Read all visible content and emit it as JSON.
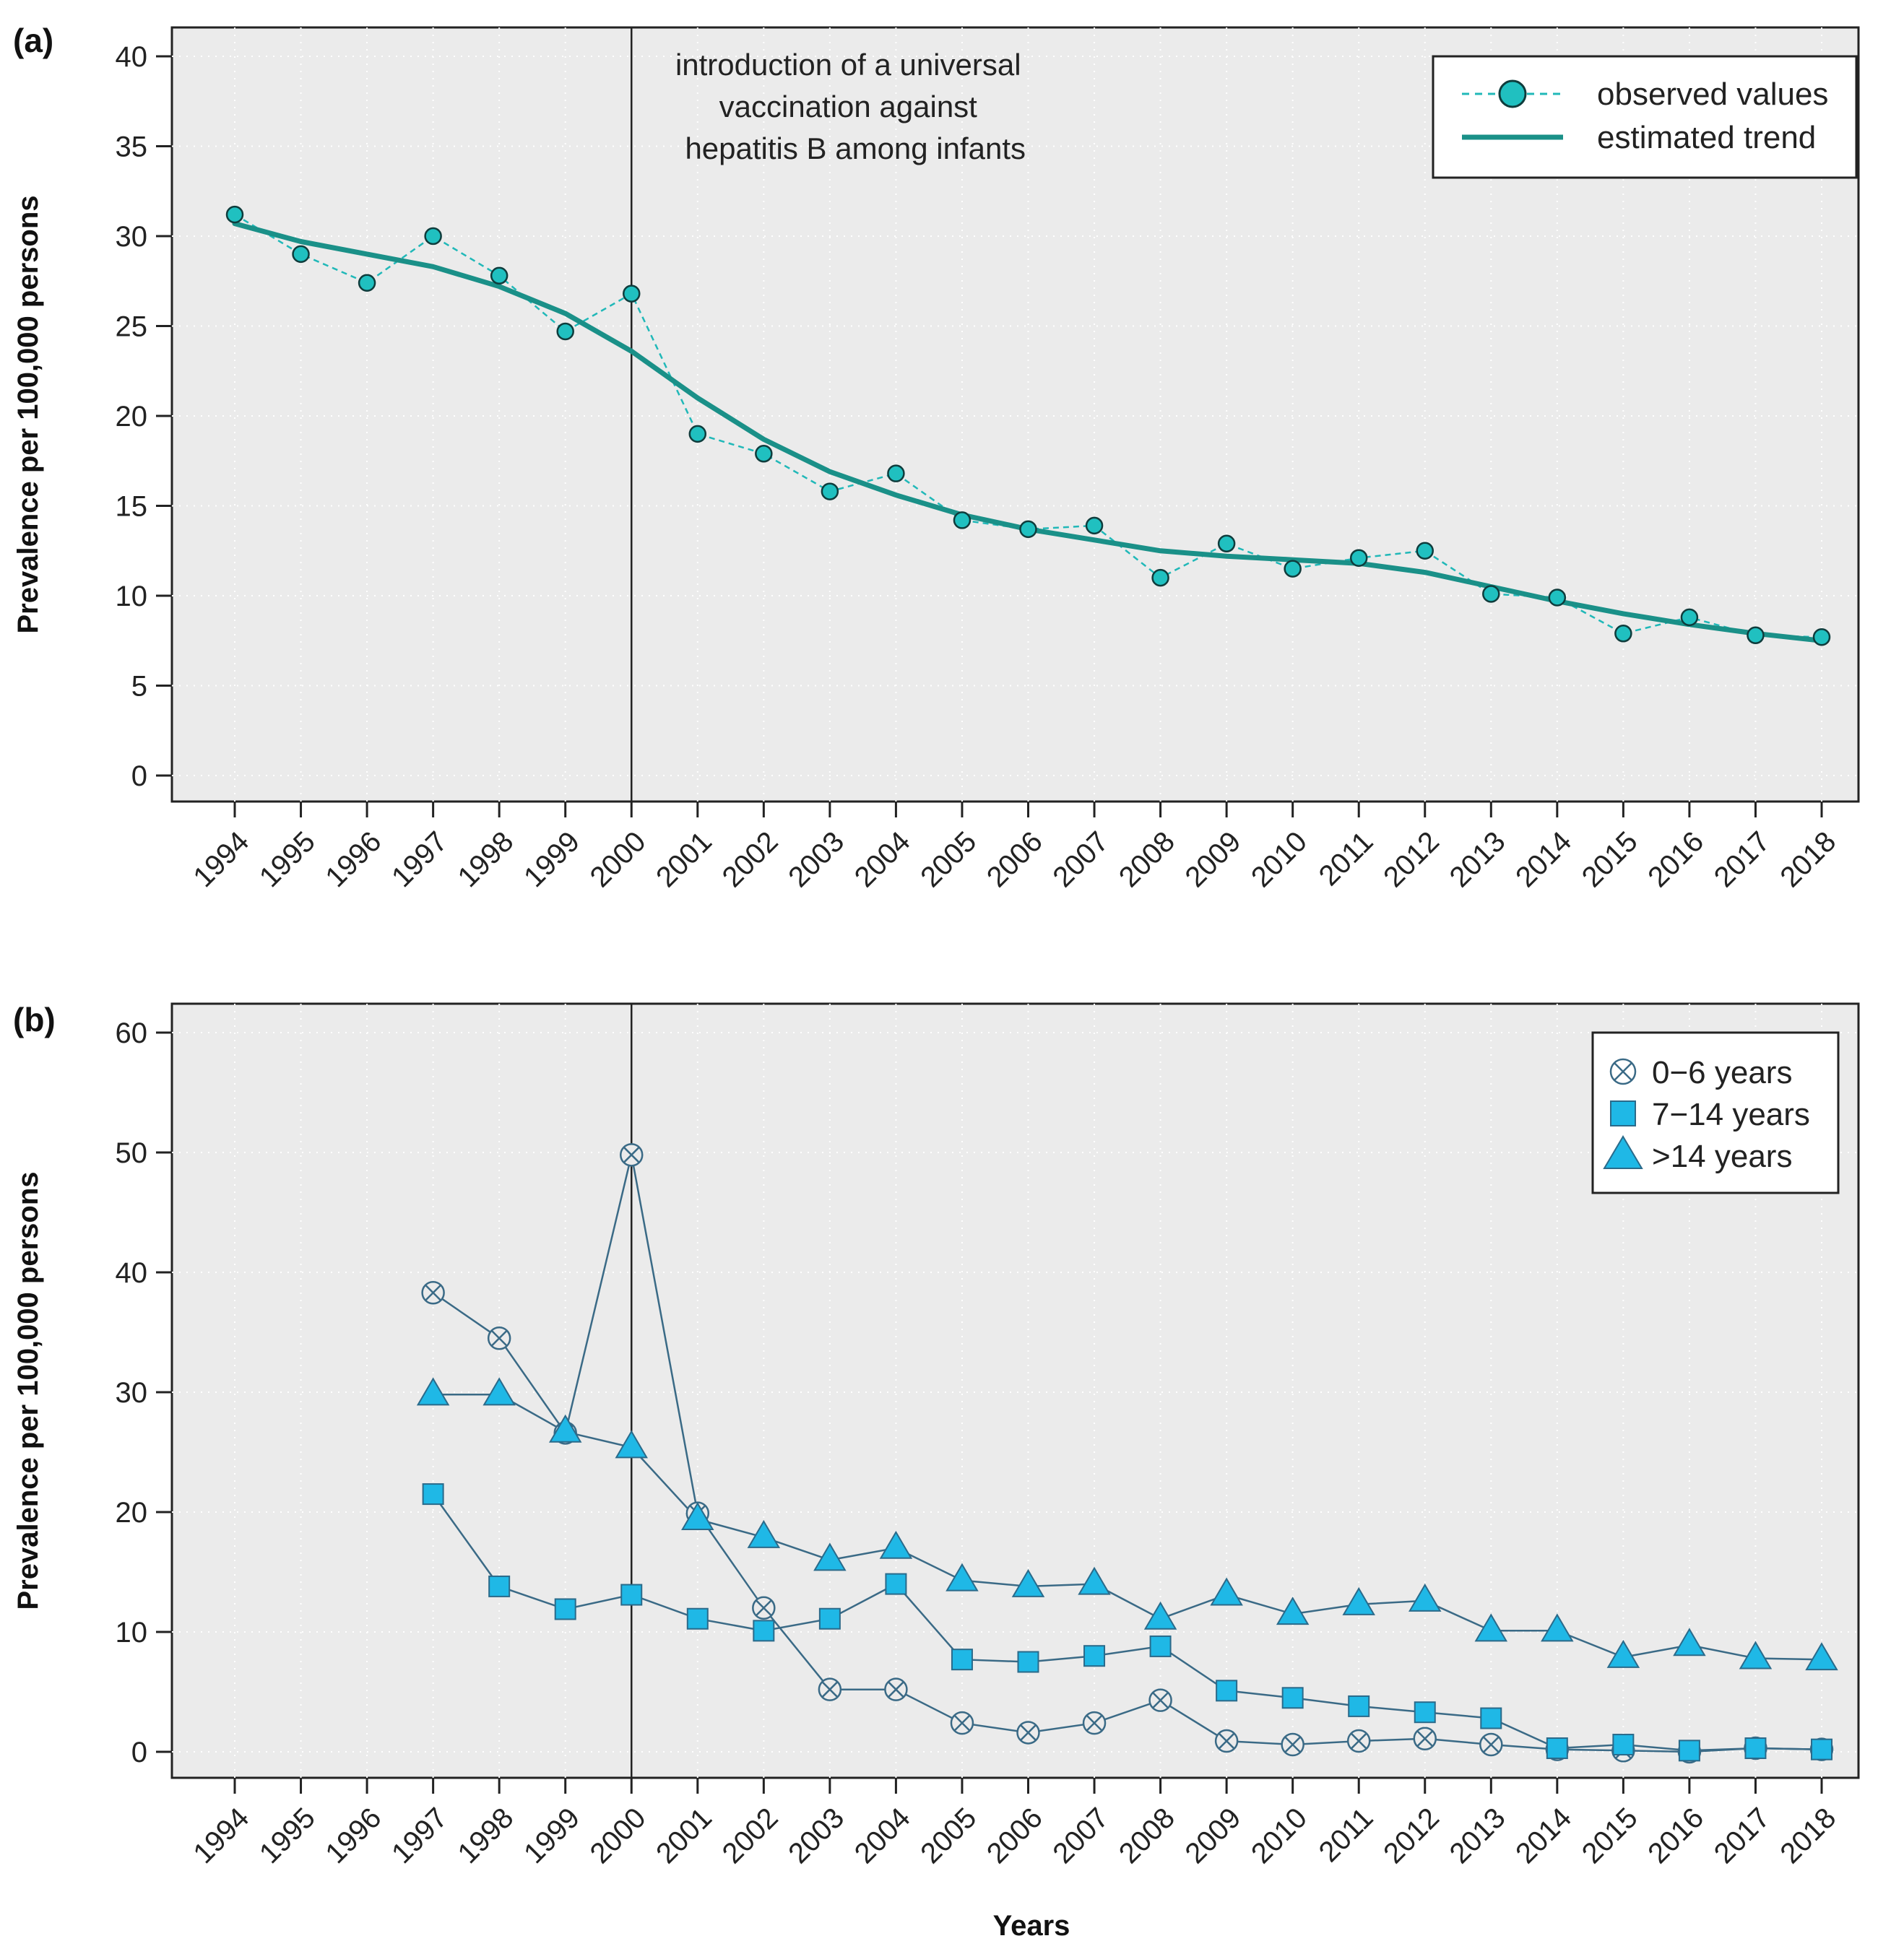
{
  "chart_data": [
    {
      "panel": "(a)",
      "type": "line",
      "ylabel": "Prevalence per 100,000 persons",
      "xlabel": "",
      "ylim": [
        0,
        40
      ],
      "yticks": [
        0,
        5,
        10,
        15,
        20,
        25,
        30,
        35,
        40
      ],
      "x": [
        1994,
        1995,
        1996,
        1997,
        1998,
        1999,
        2000,
        2001,
        2002,
        2003,
        2004,
        2005,
        2006,
        2007,
        2008,
        2009,
        2010,
        2011,
        2012,
        2013,
        2014,
        2015,
        2016,
        2017,
        2018
      ],
      "grid": true,
      "vline": {
        "x": 2000
      },
      "annotation": [
        "introduction of a universal",
        "vaccination against",
        "hepatitis B among infants"
      ],
      "legend": {
        "position": "top-right"
      },
      "series": [
        {
          "name": "observed values",
          "style": "points-dashed",
          "color": "#20b8b8",
          "values": [
            31.2,
            29.0,
            27.4,
            30.0,
            27.8,
            24.7,
            26.8,
            19.0,
            17.9,
            15.8,
            16.8,
            14.2,
            13.7,
            13.9,
            11.0,
            12.9,
            11.5,
            12.1,
            12.5,
            10.1,
            9.9,
            7.9,
            8.8,
            7.8,
            7.7
          ]
        },
        {
          "name": "estimated trend",
          "style": "line",
          "color": "#1a9088",
          "values": [
            30.7,
            29.7,
            29.0,
            28.3,
            27.2,
            25.7,
            23.6,
            21.0,
            18.7,
            16.9,
            15.6,
            14.5,
            13.7,
            13.1,
            12.5,
            12.2,
            12.0,
            11.8,
            11.3,
            10.5,
            9.7,
            9.0,
            8.4,
            7.9,
            7.5
          ]
        }
      ]
    },
    {
      "panel": "(b)",
      "type": "line",
      "ylabel": "Prevalence per 100,000 persons",
      "xlabel": "Years",
      "ylim": [
        0,
        60
      ],
      "yticks": [
        0,
        10,
        20,
        30,
        40,
        50,
        60
      ],
      "x": [
        1994,
        1995,
        1996,
        1997,
        1998,
        1999,
        2000,
        2001,
        2002,
        2003,
        2004,
        2005,
        2006,
        2007,
        2008,
        2009,
        2010,
        2011,
        2012,
        2013,
        2014,
        2015,
        2016,
        2017,
        2018
      ],
      "grid": true,
      "vline": {
        "x": 2000
      },
      "legend": {
        "position": "top-right"
      },
      "series": [
        {
          "name": "0−6 years",
          "marker": "circle-x",
          "color": "#3a6a86",
          "values": [
            null,
            null,
            null,
            38.3,
            34.5,
            26.6,
            49.8,
            19.9,
            12.0,
            5.2,
            5.2,
            2.4,
            1.6,
            2.4,
            4.3,
            0.9,
            0.6,
            0.9,
            1.1,
            0.6,
            0.2,
            0.1,
            0.0,
            0.3,
            0.2
          ]
        },
        {
          "name": "7−14 years",
          "marker": "square",
          "color": "#1fb8e6",
          "values": [
            null,
            null,
            null,
            21.5,
            13.8,
            11.9,
            13.1,
            11.1,
            10.1,
            11.1,
            14.0,
            7.7,
            7.5,
            8.0,
            8.8,
            5.1,
            4.5,
            3.8,
            3.3,
            2.8,
            0.3,
            0.6,
            0.1,
            0.3,
            0.2
          ]
        },
        {
          "name": ">14 years",
          "marker": "triangle",
          "color": "#1fb8e6",
          "values": [
            null,
            null,
            null,
            29.8,
            29.8,
            26.7,
            25.4,
            19.4,
            17.9,
            16.0,
            17.0,
            14.3,
            13.8,
            14.0,
            11.1,
            13.1,
            11.5,
            12.3,
            12.6,
            10.1,
            10.1,
            7.9,
            8.9,
            7.8,
            7.7
          ]
        }
      ]
    }
  ]
}
